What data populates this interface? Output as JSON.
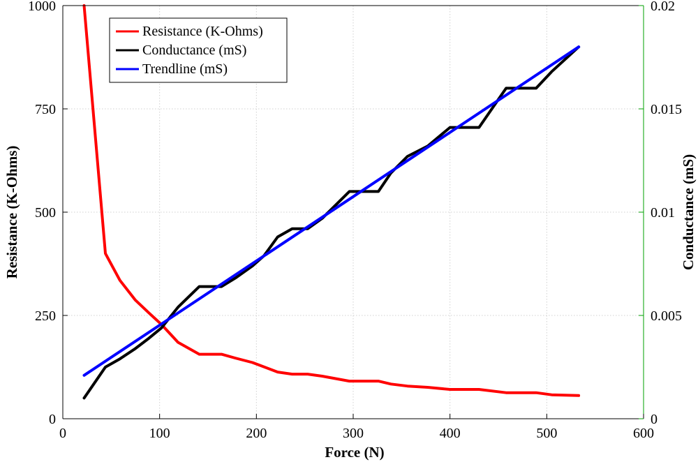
{
  "chart_data": {
    "type": "line",
    "title": "",
    "xlabel": "Force (N)",
    "ylabel_left": "Resistance (K-Ohms)",
    "ylabel_right": "Conductance (mS)",
    "xlim": [
      0,
      600
    ],
    "ylim_left": [
      0,
      1000
    ],
    "ylim_right": [
      0,
      0.02
    ],
    "x_ticks": [
      "0",
      "100",
      "200",
      "300",
      "400",
      "500",
      "600"
    ],
    "y_left_ticks": [
      "0",
      "250",
      "500",
      "750",
      "1000"
    ],
    "y_right_ticks": [
      "0",
      "0.005",
      "0.01",
      "0.015",
      "0.02"
    ],
    "grid": true,
    "legend_position": "top-left",
    "right_axis_color": "#00a000",
    "series": [
      {
        "name": "Resistance (K-Ohms)",
        "axis": "left",
        "color": "#ff0000",
        "x": [
          22,
          44,
          59,
          75,
          89,
          102,
          119,
          141,
          164,
          178,
          196,
          222,
          237,
          253,
          268,
          296,
          326,
          339,
          356,
          377,
          400,
          430,
          458,
          489,
          505,
          533
        ],
        "y": [
          1000,
          400,
          335,
          287,
          256,
          228,
          185,
          156,
          156,
          147,
          136,
          113,
          108,
          108,
          103,
          91,
          91,
          84,
          79,
          76,
          71,
          71,
          63,
          63,
          58,
          56
        ]
      },
      {
        "name": "Conductance (mS)",
        "axis": "right",
        "color": "#000000",
        "x": [
          22,
          44,
          59,
          75,
          89,
          102,
          119,
          141,
          164,
          178,
          196,
          208,
          222,
          237,
          253,
          268,
          296,
          326,
          339,
          356,
          377,
          400,
          430,
          458,
          489,
          505,
          533
        ],
        "y": [
          0.001,
          0.0025,
          0.0029,
          0.0034,
          0.0039,
          0.0044,
          0.0054,
          0.0064,
          0.0064,
          0.0068,
          0.0074,
          0.0079,
          0.0088,
          0.0092,
          0.0092,
          0.0097,
          0.011,
          0.011,
          0.0119,
          0.0127,
          0.0132,
          0.0141,
          0.0141,
          0.016,
          0.016,
          0.0168,
          0.018
        ]
      },
      {
        "name": "Trendline (mS)",
        "axis": "right",
        "color": "#0000ff",
        "x": [
          22,
          533
        ],
        "y": [
          0.0021,
          0.018
        ]
      }
    ]
  }
}
